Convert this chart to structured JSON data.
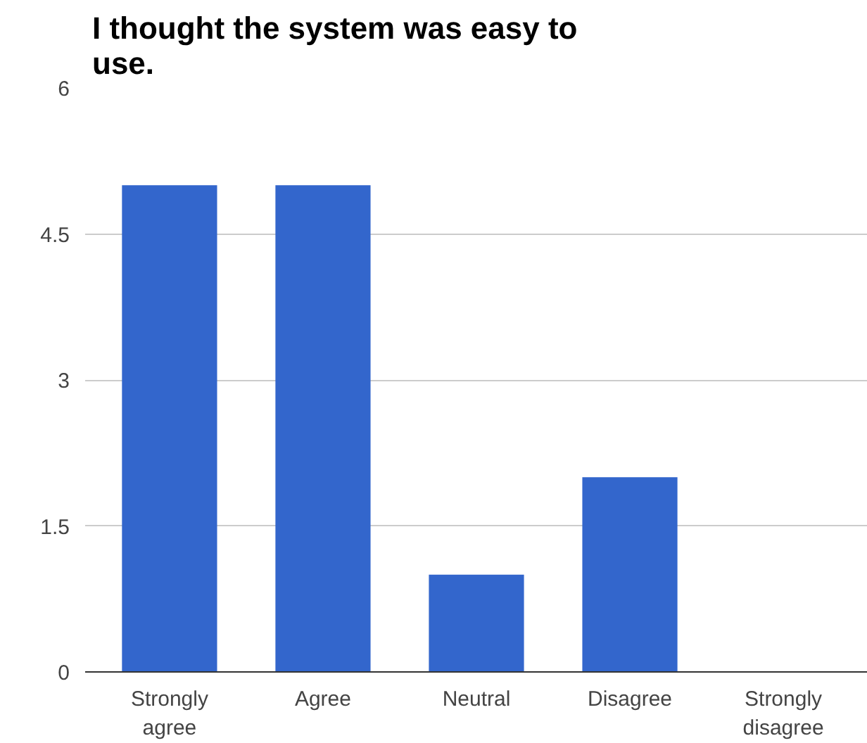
{
  "chart_data": {
    "type": "bar",
    "title": "I thought the system was easy to use.",
    "categories": [
      "Strongly agree",
      "Agree",
      "Neutral",
      "Disagree",
      "Strongly disagree"
    ],
    "values": [
      5,
      5,
      1,
      2,
      0
    ],
    "color": "#3366cc",
    "ylim": [
      0,
      6
    ],
    "yticks": [
      0,
      1.5,
      3,
      4.5,
      6
    ],
    "grid": "y"
  }
}
